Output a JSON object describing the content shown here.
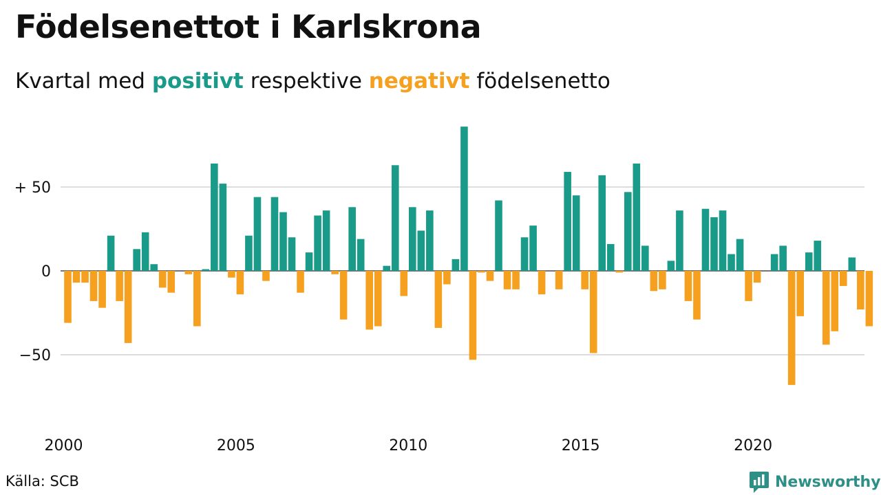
{
  "title": "Födelsenettot i Karlskrona",
  "subtitle": {
    "prefix": "Kvartal med",
    "positive_word": "positivt",
    "middle": "respektive",
    "negative_word": "negativt",
    "suffix": "födelsenetto"
  },
  "source": "Källa: SCB",
  "brand": {
    "name": "Newsworthy",
    "icon": "newsworthy-logo-icon"
  },
  "colors": {
    "positive": "#1a9b8a",
    "negative": "#f5a01e",
    "grid": "#dddddd",
    "brand": "#2e8f86"
  },
  "chart_data": {
    "type": "bar",
    "x_start": "2000 Q1",
    "x_ticks": [
      "2000",
      "2005",
      "2010",
      "2015",
      "2020"
    ],
    "y_ticks": [
      "+ 50",
      "0",
      "−50"
    ],
    "y_tick_values": [
      50,
      0,
      -50
    ],
    "ylim": [
      -85,
      90
    ],
    "grid": true,
    "values": [
      -31,
      -7,
      -7,
      -18,
      -22,
      21,
      -18,
      -43,
      13,
      23,
      4,
      -10,
      -13,
      0,
      -2,
      -33,
      1,
      64,
      52,
      -4,
      -14,
      21,
      44,
      -6,
      44,
      35,
      20,
      -13,
      11,
      33,
      36,
      -2,
      -29,
      38,
      19,
      -35,
      -33,
      3,
      63,
      -15,
      38,
      24,
      36,
      -34,
      -8,
      7,
      86,
      -53,
      -1,
      -6,
      42,
      -11,
      -11,
      20,
      27,
      -14,
      0,
      -11,
      59,
      45,
      -11,
      -49,
      57,
      16,
      -1,
      47,
      64,
      15,
      -12,
      -11,
      6,
      36,
      -18,
      -29,
      37,
      32,
      36,
      10,
      19,
      -18,
      -7,
      0,
      10,
      15,
      -68,
      -27,
      11,
      18,
      -44,
      -36,
      -9,
      8,
      -23,
      -33
    ]
  }
}
